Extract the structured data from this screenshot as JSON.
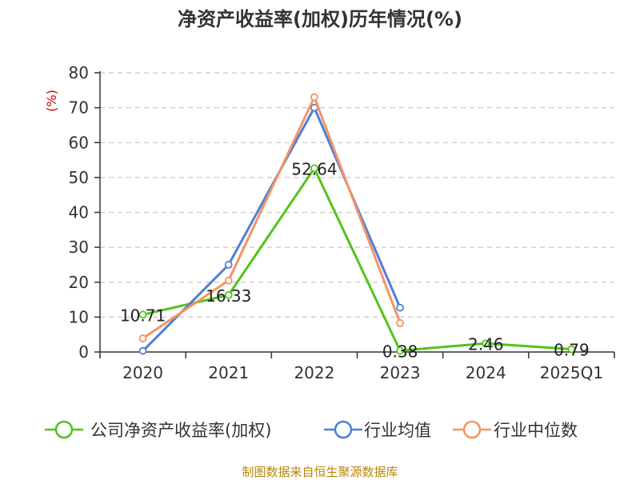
{
  "title": "净资产收益率(加权)历年情况(%)",
  "unit_label": "(%)",
  "source_text": "制图数据来自恒生聚源数据库",
  "chart_data": {
    "type": "line",
    "title": "净资产收益率(加权)历年情况(%)",
    "categories": [
      "2020",
      "2021",
      "2022",
      "2023",
      "2024",
      "2025Q1"
    ],
    "ylabel": "(%)",
    "ylim": [
      0,
      80
    ],
    "yticks": [
      "0",
      "10",
      "20",
      "30",
      "40",
      "50",
      "60",
      "70",
      "80"
    ],
    "grid": true,
    "legend_position": "bottom",
    "series": [
      {
        "name": "公司净资产收益率(加权)",
        "color": "#52c41a",
        "values": [
          10.71,
          16.33,
          52.64,
          0.38,
          2.46,
          0.79
        ],
        "labels": [
          "10.71",
          "16.33",
          "52.64",
          "0.38",
          "2.46",
          "0.79"
        ]
      },
      {
        "name": "行业均值",
        "color": "#4e7fd8",
        "values": [
          0.3,
          25,
          70,
          12.7,
          null,
          null
        ]
      },
      {
        "name": "行业中位数",
        "color": "#f59364",
        "values": [
          3.9,
          20.5,
          73,
          8.3,
          null,
          null
        ]
      }
    ]
  }
}
